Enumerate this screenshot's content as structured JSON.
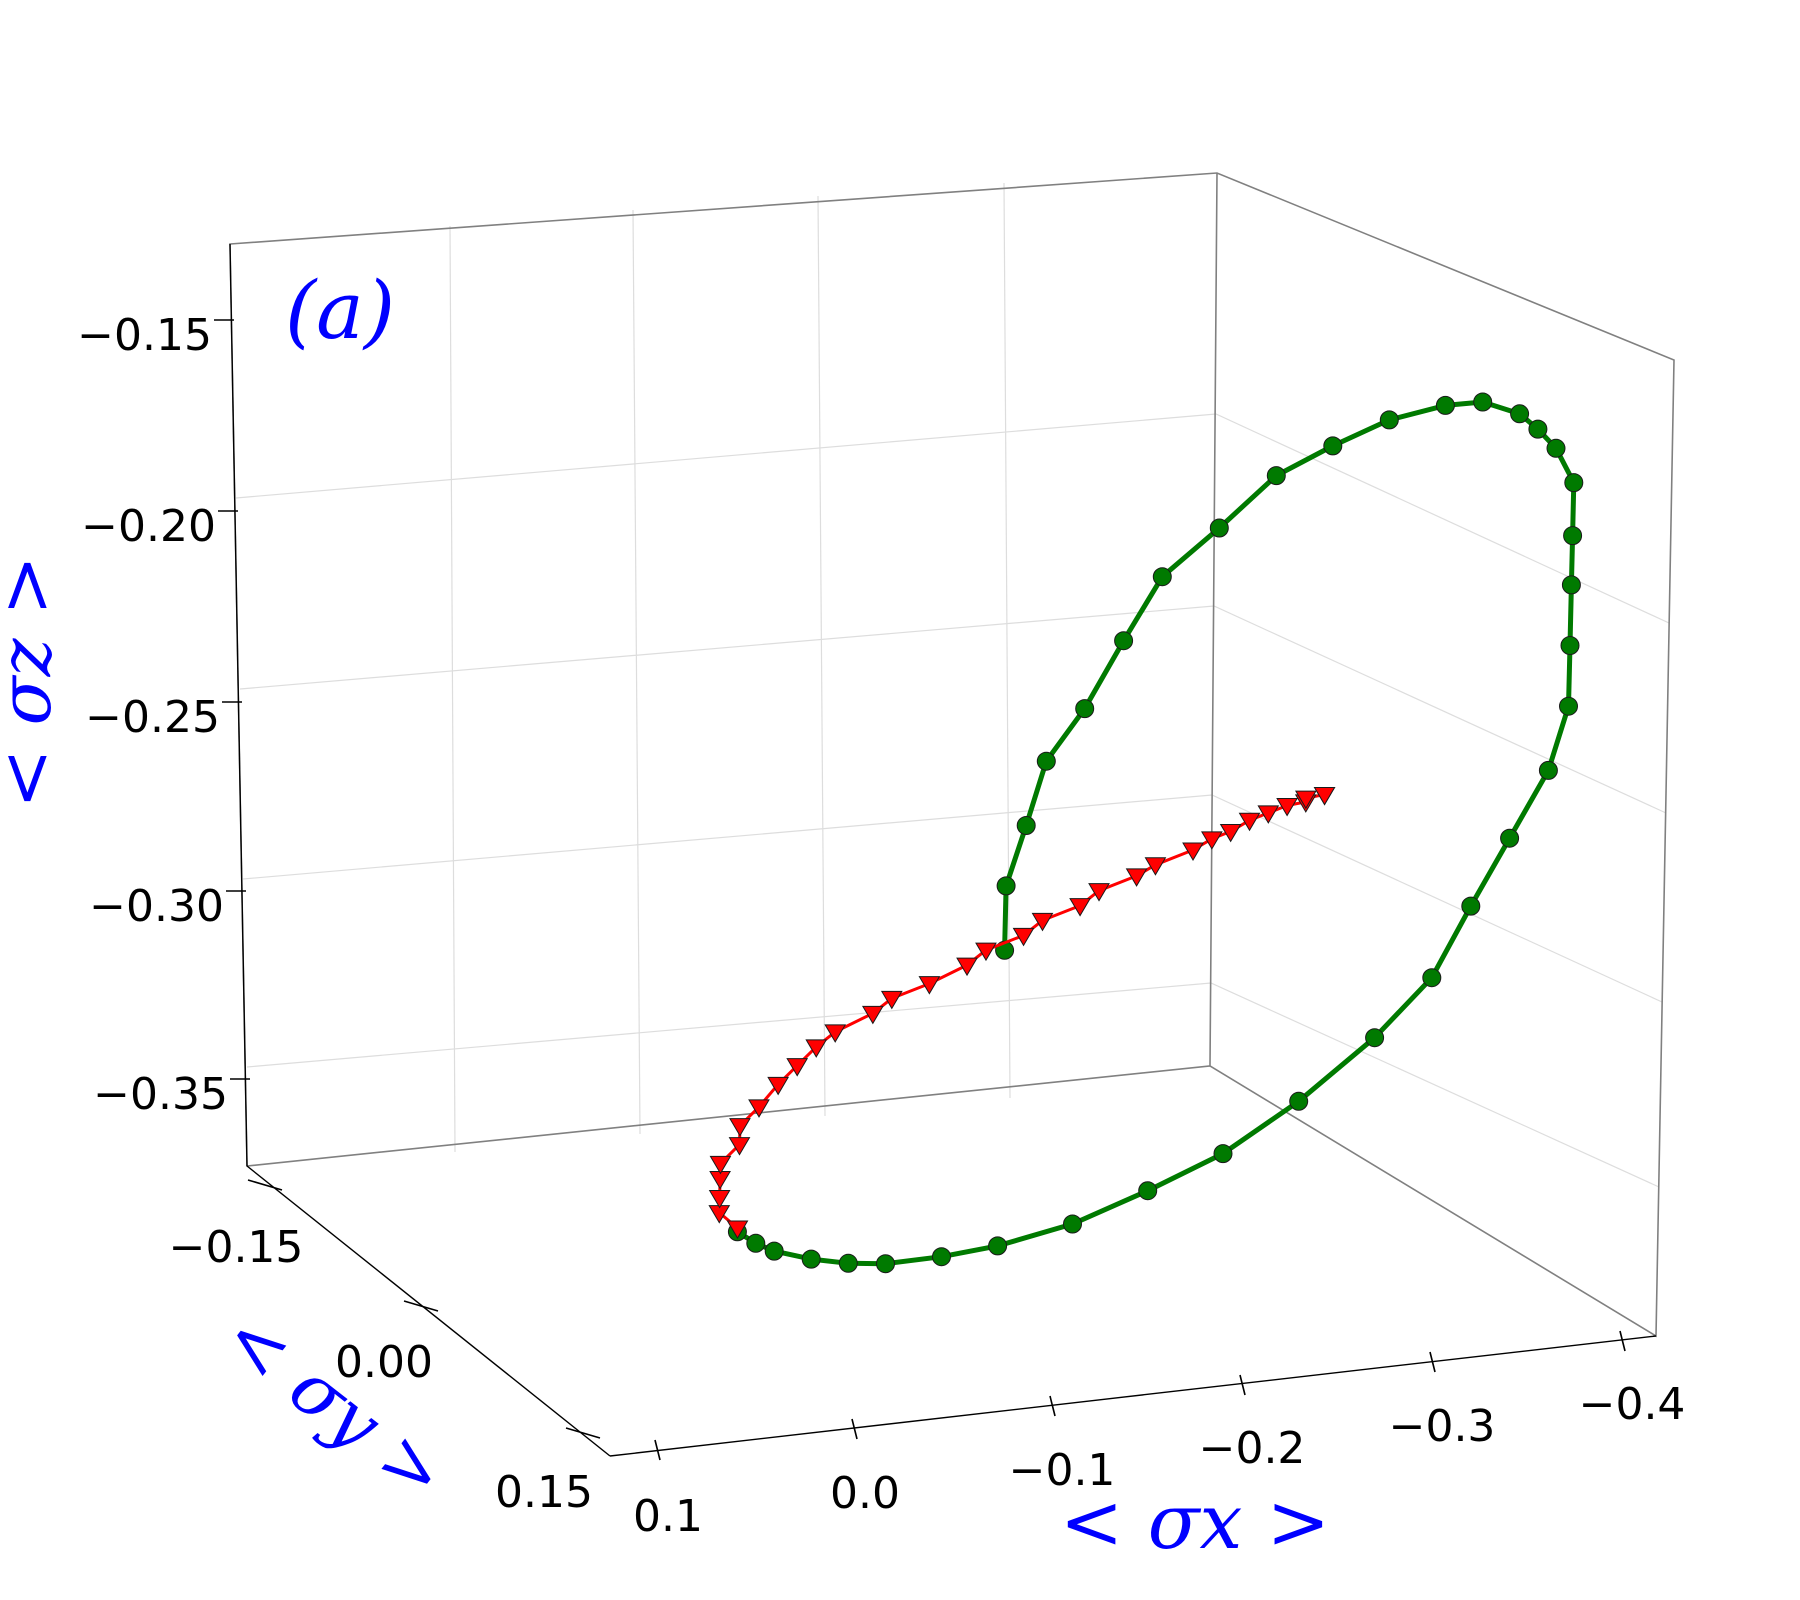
{
  "panel_label": "(a)",
  "colors": {
    "green_series": "#007a00",
    "red_series": "#ff0000",
    "axis_title": "#0000ff"
  },
  "chart_data": {
    "type": "scatter",
    "projection": "3d",
    "grid": true,
    "xlabel": "< σx >",
    "ylabel": "< σy >",
    "zlabel": "< σz >",
    "x_ticks": [
      "0.1",
      "0.0",
      "−0.1",
      "−0.2",
      "−0.3",
      "−0.4"
    ],
    "y_ticks": [
      "−0.15",
      "0.00",
      "0.15"
    ],
    "z_ticks": [
      "−0.15",
      "−0.20",
      "−0.25",
      "−0.30",
      "−0.35"
    ],
    "series": [
      {
        "marker": "circle",
        "color": "#007a00",
        "line": true,
        "points": [
          [
            -0.01,
            -0.09,
            -0.278
          ],
          [
            -0.01,
            -0.09,
            -0.261
          ],
          [
            -0.02,
            -0.09,
            -0.245
          ],
          [
            -0.03,
            -0.09,
            -0.228
          ],
          [
            -0.05,
            -0.09,
            -0.214
          ],
          [
            -0.07,
            -0.09,
            -0.196
          ],
          [
            -0.09,
            -0.09,
            -0.179
          ],
          [
            -0.12,
            -0.09,
            -0.166
          ],
          [
            -0.15,
            -0.09,
            -0.152
          ],
          [
            -0.18,
            -0.09,
            -0.144
          ],
          [
            -0.21,
            -0.09,
            -0.137
          ],
          [
            -0.24,
            -0.09,
            -0.133
          ],
          [
            -0.26,
            -0.09,
            -0.132
          ],
          [
            -0.28,
            -0.09,
            -0.135
          ],
          [
            -0.29,
            -0.09,
            -0.139
          ],
          [
            -0.3,
            -0.09,
            -0.144
          ],
          [
            -0.31,
            -0.09,
            -0.153
          ],
          [
            -0.31,
            -0.09,
            -0.167
          ],
          [
            -0.31,
            -0.09,
            -0.18
          ],
          [
            -0.31,
            -0.09,
            -0.196
          ],
          [
            -0.31,
            -0.09,
            -0.212
          ],
          [
            -0.3,
            -0.09,
            -0.229
          ],
          [
            -0.28,
            -0.09,
            -0.247
          ],
          [
            -0.26,
            -0.09,
            -0.265
          ],
          [
            -0.24,
            -0.09,
            -0.284
          ],
          [
            -0.21,
            -0.09,
            -0.3
          ],
          [
            -0.17,
            -0.09,
            -0.317
          ],
          [
            -0.13,
            -0.09,
            -0.331
          ],
          [
            -0.09,
            -0.09,
            -0.341
          ],
          [
            -0.05,
            -0.09,
            -0.35
          ],
          [
            -0.01,
            -0.09,
            -0.356
          ],
          [
            0.02,
            -0.09,
            -0.359
          ],
          [
            0.05,
            -0.09,
            -0.361
          ],
          [
            0.07,
            -0.09,
            -0.361
          ],
          [
            0.09,
            -0.09,
            -0.36
          ],
          [
            0.11,
            -0.09,
            -0.358
          ],
          [
            0.12,
            -0.09,
            -0.356
          ],
          [
            0.13,
            -0.09,
            -0.353
          ]
        ]
      },
      {
        "marker": "triangle-down",
        "color": "#ff0000",
        "line": true,
        "points": [
          [
            0.13,
            -0.09,
            -0.352
          ],
          [
            0.14,
            -0.09,
            -0.348
          ],
          [
            0.14,
            -0.09,
            -0.344
          ],
          [
            0.14,
            -0.09,
            -0.339
          ],
          [
            0.14,
            -0.09,
            -0.335
          ],
          [
            0.13,
            -0.09,
            -0.33
          ],
          [
            0.13,
            -0.09,
            -0.325
          ],
          [
            0.12,
            -0.09,
            -0.32
          ],
          [
            0.11,
            -0.09,
            -0.314
          ],
          [
            0.1,
            -0.09,
            -0.309
          ],
          [
            0.09,
            -0.09,
            -0.304
          ],
          [
            0.08,
            -0.09,
            -0.3
          ],
          [
            0.06,
            -0.09,
            -0.295
          ],
          [
            0.05,
            -0.09,
            -0.291
          ],
          [
            0.03,
            -0.09,
            -0.287
          ],
          [
            0.01,
            -0.09,
            -0.282
          ],
          [
            0.0,
            -0.09,
            -0.278
          ],
          [
            -0.02,
            -0.09,
            -0.274
          ],
          [
            -0.03,
            -0.09,
            -0.27
          ],
          [
            -0.05,
            -0.09,
            -0.266
          ],
          [
            -0.06,
            -0.09,
            -0.262
          ],
          [
            -0.08,
            -0.09,
            -0.258
          ],
          [
            -0.09,
            -0.09,
            -0.255
          ],
          [
            -0.11,
            -0.09,
            -0.251
          ],
          [
            -0.12,
            -0.09,
            -0.248
          ],
          [
            -0.13,
            -0.09,
            -0.246
          ],
          [
            -0.14,
            -0.09,
            -0.243
          ],
          [
            -0.15,
            -0.09,
            -0.241
          ],
          [
            -0.16,
            -0.09,
            -0.239
          ],
          [
            -0.17,
            -0.09,
            -0.238
          ],
          [
            -0.17,
            -0.09,
            -0.237
          ],
          [
            -0.18,
            -0.09,
            -0.236
          ],
          [
            -0.18,
            -0.09,
            -0.236
          ]
        ]
      }
    ]
  }
}
